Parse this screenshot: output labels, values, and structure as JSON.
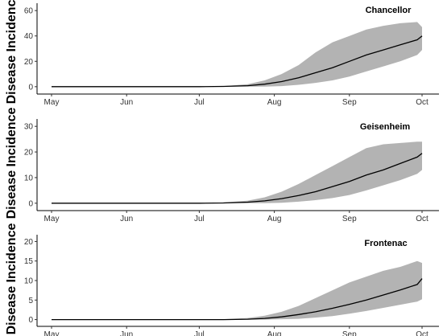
{
  "chart_data": [
    {
      "type": "area",
      "title": "Chancellor",
      "xlabel": "",
      "ylabel": "Disease Incidence",
      "x_tick_labels": [
        "May",
        "Jun",
        "Jul",
        "Aug",
        "Sep",
        "Oct"
      ],
      "y_ticks": [
        0,
        20,
        40,
        60
      ],
      "ylim": [
        -2,
        62
      ],
      "grid": false,
      "series": [
        {
          "kind": "line",
          "x": [
            "2019-04-30",
            "2019-05-31",
            "2019-06-30",
            "2019-07-10",
            "2019-07-20",
            "2019-07-27",
            "2019-08-03",
            "2019-08-10",
            "2019-08-17",
            "2019-08-24",
            "2019-08-31",
            "2019-09-07",
            "2019-09-14",
            "2019-09-21",
            "2019-09-28",
            "2019-09-30"
          ],
          "y": [
            0,
            0,
            0,
            0.2,
            0.8,
            2,
            4,
            7,
            11,
            15,
            20,
            25,
            29,
            33,
            37,
            40
          ]
        },
        {
          "kind": "band",
          "x": [
            "2019-04-30",
            "2019-05-31",
            "2019-06-30",
            "2019-07-10",
            "2019-07-20",
            "2019-07-27",
            "2019-08-03",
            "2019-08-10",
            "2019-08-17",
            "2019-08-24",
            "2019-08-31",
            "2019-09-07",
            "2019-09-14",
            "2019-09-21",
            "2019-09-28",
            "2019-09-30"
          ],
          "lower": [
            0,
            0,
            0,
            0,
            0,
            0,
            0.5,
            1.5,
            3,
            5,
            8,
            12,
            16,
            20,
            25,
            29
          ],
          "upper": [
            0,
            0,
            0,
            0.5,
            2,
            5,
            10,
            17,
            27,
            35,
            40,
            45,
            48,
            50,
            51,
            47
          ]
        }
      ]
    },
    {
      "type": "area",
      "title": "Geisenheim",
      "xlabel": "",
      "ylabel": "Disease Incidence",
      "x_tick_labels": [
        "May",
        "Jun",
        "Jul",
        "Aug",
        "Sep",
        "Oct"
      ],
      "y_ticks": [
        0,
        10,
        20,
        30
      ],
      "ylim": [
        -1,
        31
      ],
      "grid": false,
      "series": [
        {
          "kind": "line",
          "x": [
            "2019-04-30",
            "2019-05-31",
            "2019-06-30",
            "2019-07-10",
            "2019-07-20",
            "2019-07-27",
            "2019-08-03",
            "2019-08-10",
            "2019-08-17",
            "2019-08-24",
            "2019-08-31",
            "2019-09-07",
            "2019-09-14",
            "2019-09-21",
            "2019-09-28",
            "2019-09-30"
          ],
          "y": [
            0,
            0,
            0,
            0.1,
            0.4,
            0.9,
            1.8,
            3,
            4.5,
            6.5,
            8.5,
            11,
            13,
            15.5,
            18,
            19.5
          ]
        },
        {
          "kind": "band",
          "x": [
            "2019-04-30",
            "2019-05-31",
            "2019-06-30",
            "2019-07-10",
            "2019-07-20",
            "2019-07-27",
            "2019-08-03",
            "2019-08-10",
            "2019-08-17",
            "2019-08-24",
            "2019-08-31",
            "2019-09-07",
            "2019-09-14",
            "2019-09-21",
            "2019-09-28",
            "2019-09-30"
          ],
          "lower": [
            0,
            0,
            0,
            0,
            0,
            0,
            0.2,
            0.6,
            1.2,
            2,
            3.2,
            5,
            7,
            9,
            11.5,
            13
          ],
          "upper": [
            0,
            0,
            0,
            0.3,
            1,
            2.3,
            4.5,
            7.5,
            11,
            14.5,
            18,
            21.5,
            23,
            23.5,
            24,
            24
          ]
        }
      ]
    },
    {
      "type": "area",
      "title": "Frontenac",
      "xlabel": "",
      "ylabel": "Disease Incidence",
      "x_tick_labels": [
        "May",
        "Jun",
        "Jul",
        "Aug",
        "Sep",
        "Oct"
      ],
      "y_ticks": [
        0,
        5,
        10,
        15,
        20
      ],
      "ylim": [
        -0.5,
        20.5
      ],
      "grid": false,
      "series": [
        {
          "kind": "line",
          "x": [
            "2019-04-30",
            "2019-05-31",
            "2019-06-30",
            "2019-07-10",
            "2019-07-20",
            "2019-07-27",
            "2019-08-03",
            "2019-08-10",
            "2019-08-17",
            "2019-08-24",
            "2019-08-31",
            "2019-09-07",
            "2019-09-14",
            "2019-09-21",
            "2019-09-28",
            "2019-09-30"
          ],
          "y": [
            0,
            0,
            0,
            0,
            0.1,
            0.3,
            0.7,
            1.3,
            2,
            2.9,
            3.9,
            5,
            6.3,
            7.6,
            9,
            10.5
          ]
        },
        {
          "kind": "band",
          "x": [
            "2019-04-30",
            "2019-05-31",
            "2019-06-30",
            "2019-07-10",
            "2019-07-20",
            "2019-07-27",
            "2019-08-03",
            "2019-08-10",
            "2019-08-17",
            "2019-08-24",
            "2019-08-31",
            "2019-09-07",
            "2019-09-14",
            "2019-09-21",
            "2019-09-28",
            "2019-09-30"
          ],
          "lower": [
            0,
            0,
            0,
            0,
            0,
            0,
            0.1,
            0.2,
            0.5,
            0.9,
            1.5,
            2.2,
            3,
            3.8,
            4.6,
            5.2
          ],
          "upper": [
            0,
            0,
            0,
            0.1,
            0.4,
            1,
            2,
            3.5,
            5.5,
            7.5,
            9.5,
            11,
            12.5,
            13.5,
            15,
            14.5
          ]
        }
      ]
    }
  ],
  "style": {
    "band_color": "#b3b3b3",
    "line_color": "#000000",
    "axis_color": "#000000"
  }
}
